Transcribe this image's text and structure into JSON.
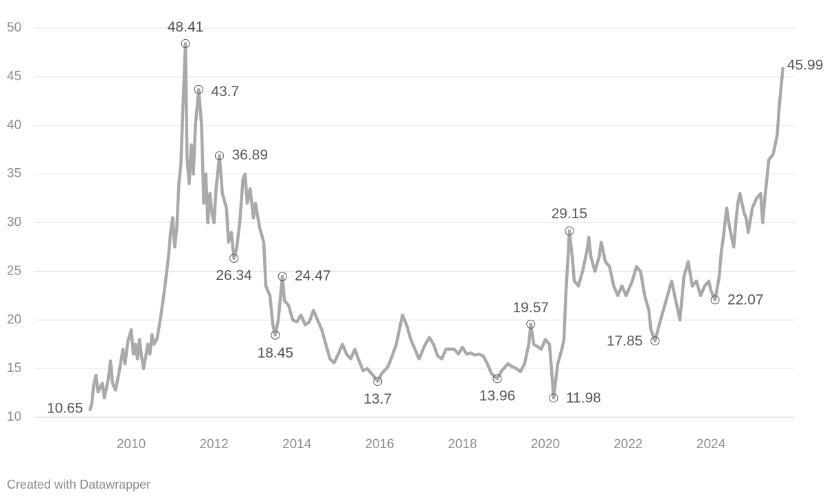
{
  "chart_data": {
    "type": "line",
    "footer": "Created with Datawrapper",
    "xlim": [
      2007.66,
      2026.04
    ],
    "xticks": [
      2010,
      2012,
      2014,
      2016,
      2018,
      2020,
      2022,
      2024
    ],
    "ylim": [
      10,
      50
    ],
    "yticks": [
      10,
      15,
      20,
      25,
      30,
      35,
      40,
      45,
      50
    ],
    "grid": true,
    "series": [
      {
        "color": "#a8a8ad",
        "x": [
          2009.0,
          2009.05,
          2009.1,
          2009.15,
          2009.2,
          2009.3,
          2009.35,
          2009.45,
          2009.5,
          2009.55,
          2009.62,
          2009.7,
          2009.8,
          2009.85,
          2009.92,
          2010.0,
          2010.05,
          2010.1,
          2010.15,
          2010.2,
          2010.25,
          2010.3,
          2010.4,
          2010.45,
          2010.5,
          2010.55,
          2010.62,
          2010.7,
          2010.8,
          2010.9,
          2010.95,
          2011.0,
          2011.05,
          2011.1,
          2011.15,
          2011.2,
          2011.25,
          2011.31,
          2011.35,
          2011.4,
          2011.45,
          2011.5,
          2011.55,
          2011.63,
          2011.7,
          2011.75,
          2011.8,
          2011.85,
          2011.9,
          2011.95,
          2012.0,
          2012.05,
          2012.13,
          2012.2,
          2012.3,
          2012.35,
          2012.42,
          2012.48,
          2012.55,
          2012.62,
          2012.7,
          2012.75,
          2012.8,
          2012.87,
          2012.95,
          2013.0,
          2013.1,
          2013.2,
          2013.25,
          2013.35,
          2013.42,
          2013.48,
          2013.55,
          2013.65,
          2013.7,
          2013.8,
          2013.9,
          2014.0,
          2014.1,
          2014.2,
          2014.3,
          2014.4,
          2014.5,
          2014.6,
          2014.7,
          2014.8,
          2014.9,
          2015.0,
          2015.1,
          2015.2,
          2015.3,
          2015.4,
          2015.5,
          2015.6,
          2015.7,
          2015.8,
          2015.9,
          2015.95,
          2016.05,
          2016.2,
          2016.3,
          2016.4,
          2016.5,
          2016.55,
          2016.65,
          2016.75,
          2016.85,
          2016.95,
          2017.1,
          2017.2,
          2017.3,
          2017.4,
          2017.5,
          2017.6,
          2017.7,
          2017.8,
          2017.9,
          2018.0,
          2018.1,
          2018.2,
          2018.3,
          2018.4,
          2018.5,
          2018.6,
          2018.7,
          2018.84,
          2018.95,
          2019.1,
          2019.2,
          2019.3,
          2019.4,
          2019.5,
          2019.6,
          2019.65,
          2019.72,
          2019.8,
          2019.9,
          2020.0,
          2020.1,
          2020.15,
          2020.2,
          2020.3,
          2020.4,
          2020.45,
          2020.5,
          2020.55,
          2020.58,
          2020.65,
          2020.7,
          2020.8,
          2020.9,
          2021.0,
          2021.05,
          2021.1,
          2021.2,
          2021.3,
          2021.35,
          2021.45,
          2021.55,
          2021.65,
          2021.75,
          2021.85,
          2021.95,
          2022.1,
          2022.2,
          2022.3,
          2022.4,
          2022.5,
          2022.55,
          2022.65,
          2022.75,
          2022.85,
          2022.95,
          2023.05,
          2023.15,
          2023.25,
          2023.35,
          2023.45,
          2023.55,
          2023.65,
          2023.75,
          2023.85,
          2023.95,
          2024.0,
          2024.1,
          2024.2,
          2024.25,
          2024.3,
          2024.38,
          2024.45,
          2024.5,
          2024.55,
          2024.6,
          2024.65,
          2024.7,
          2024.8,
          2024.85,
          2024.9,
          2025.0,
          2025.1,
          2025.2,
          2025.25,
          2025.3,
          2025.4,
          2025.5,
          2025.6,
          2025.65,
          2025.74
        ],
        "values": [
          10.65,
          11.5,
          13.5,
          14.3,
          12.6,
          13.5,
          12.0,
          14.0,
          15.8,
          13.5,
          12.8,
          14.5,
          17.0,
          15.5,
          17.8,
          19.0,
          16.5,
          17.5,
          16.0,
          18.0,
          16.2,
          15.0,
          17.5,
          16.5,
          18.5,
          17.5,
          18.0,
          20.0,
          23.0,
          26.5,
          29.0,
          30.5,
          27.5,
          29.5,
          34.0,
          36.0,
          42.0,
          48.41,
          36.5,
          34.0,
          38.0,
          35.0,
          40.0,
          43.7,
          40.0,
          32.0,
          35.0,
          30.0,
          33.0,
          31.0,
          30.0,
          33.5,
          36.89,
          33.0,
          31.5,
          28.0,
          29.0,
          26.34,
          27.5,
          30.0,
          34.5,
          35.0,
          32.0,
          33.5,
          30.5,
          32.0,
          29.5,
          28.0,
          23.5,
          22.5,
          19.5,
          18.45,
          20.0,
          24.47,
          22.0,
          21.5,
          20.0,
          19.8,
          20.5,
          19.5,
          19.8,
          21.0,
          20.0,
          19.0,
          17.5,
          16.0,
          15.6,
          16.5,
          17.5,
          16.5,
          16.0,
          17.0,
          15.8,
          14.8,
          15.0,
          14.5,
          14.0,
          13.7,
          14.5,
          15.2,
          16.3,
          17.5,
          19.5,
          20.5,
          19.5,
          18.0,
          17.0,
          16.0,
          17.5,
          18.2,
          17.5,
          16.3,
          16.0,
          17.0,
          17.0,
          17.0,
          16.5,
          17.2,
          16.5,
          16.6,
          16.4,
          16.5,
          16.3,
          15.5,
          14.5,
          13.96,
          14.8,
          15.5,
          15.2,
          15.0,
          14.7,
          15.5,
          17.5,
          19.57,
          17.5,
          17.3,
          17.0,
          18.0,
          17.5,
          15.0,
          11.98,
          15.5,
          17.0,
          18.0,
          23.0,
          26.5,
          29.15,
          26.5,
          24.0,
          23.5,
          25.0,
          27.0,
          28.5,
          26.5,
          25.0,
          26.5,
          28.0,
          26.0,
          25.5,
          23.5,
          22.5,
          23.5,
          22.5,
          24.0,
          25.5,
          25.0,
          22.5,
          21.0,
          19.0,
          17.85,
          19.5,
          21.0,
          22.5,
          24.0,
          22.0,
          20.0,
          24.5,
          26.0,
          23.5,
          24.0,
          22.5,
          23.5,
          24.0,
          23.0,
          22.07,
          24.5,
          27.0,
          28.5,
          31.5,
          29.5,
          28.5,
          27.5,
          30.0,
          32.0,
          33.0,
          31.0,
          30.5,
          29.0,
          31.5,
          32.5,
          33.0,
          30.0,
          32.5,
          36.5,
          37.0,
          39.0,
          42.0,
          45.99
        ]
      }
    ],
    "annotations": [
      {
        "x": 2009.0,
        "value": 10.65
      },
      {
        "x": 2011.31,
        "value": 48.41
      },
      {
        "x": 2011.63,
        "value": 43.7
      },
      {
        "x": 2012.13,
        "value": 36.89
      },
      {
        "x": 2012.48,
        "value": 26.34
      },
      {
        "x": 2013.48,
        "value": 18.45
      },
      {
        "x": 2013.65,
        "value": 24.47
      },
      {
        "x": 2015.95,
        "value": 13.7
      },
      {
        "x": 2018.84,
        "value": 13.96
      },
      {
        "x": 2019.65,
        "value": 19.57
      },
      {
        "x": 2020.2,
        "value": 11.98
      },
      {
        "x": 2020.58,
        "value": 29.15
      },
      {
        "x": 2022.65,
        "value": 17.85
      },
      {
        "x": 2024.1,
        "value": 22.07
      },
      {
        "x": 2025.74,
        "value": 45.99
      }
    ]
  }
}
